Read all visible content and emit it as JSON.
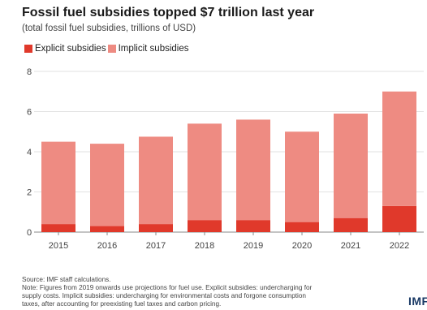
{
  "header": {
    "title": "Fossil fuel subsidies topped $7 trillion last year",
    "subtitle": "(total fossil fuel subsidies, trillions of USD)"
  },
  "legend": [
    {
      "label": "Explicit subsidies",
      "color": "#e0392b"
    },
    {
      "label": "Implicit subsidies",
      "color": "#ee8b82"
    }
  ],
  "chart_data": {
    "type": "bar",
    "stacked": true,
    "categories": [
      "2015",
      "2016",
      "2017",
      "2018",
      "2019",
      "2020",
      "2021",
      "2022"
    ],
    "series": [
      {
        "name": "Explicit subsidies",
        "color": "#e0392b",
        "values": [
          0.4,
          0.3,
          0.4,
          0.6,
          0.6,
          0.5,
          0.7,
          1.3
        ]
      },
      {
        "name": "Implicit subsidies",
        "color": "#ee8b82",
        "values": [
          4.1,
          4.1,
          4.35,
          4.8,
          5.0,
          4.5,
          5.2,
          5.7
        ]
      }
    ],
    "ylim": [
      0,
      8
    ],
    "yticks": [
      "0",
      "2",
      "4",
      "6",
      "8"
    ],
    "grid": true,
    "legend_position": "top-left"
  },
  "footer": {
    "source": "Source: IMF staff calculations.",
    "note_line1": "Note: Figures from 2019 onwards use projections for fuel use. Explicit subsidies: undercharging for",
    "note_line2": "supply costs. Implicit subsidies: undercharging for environmental costs and forgone consumption",
    "note_line3": "taxes, after accounting for preexisting fuel taxes and carbon pricing.",
    "logo": "IMF"
  }
}
